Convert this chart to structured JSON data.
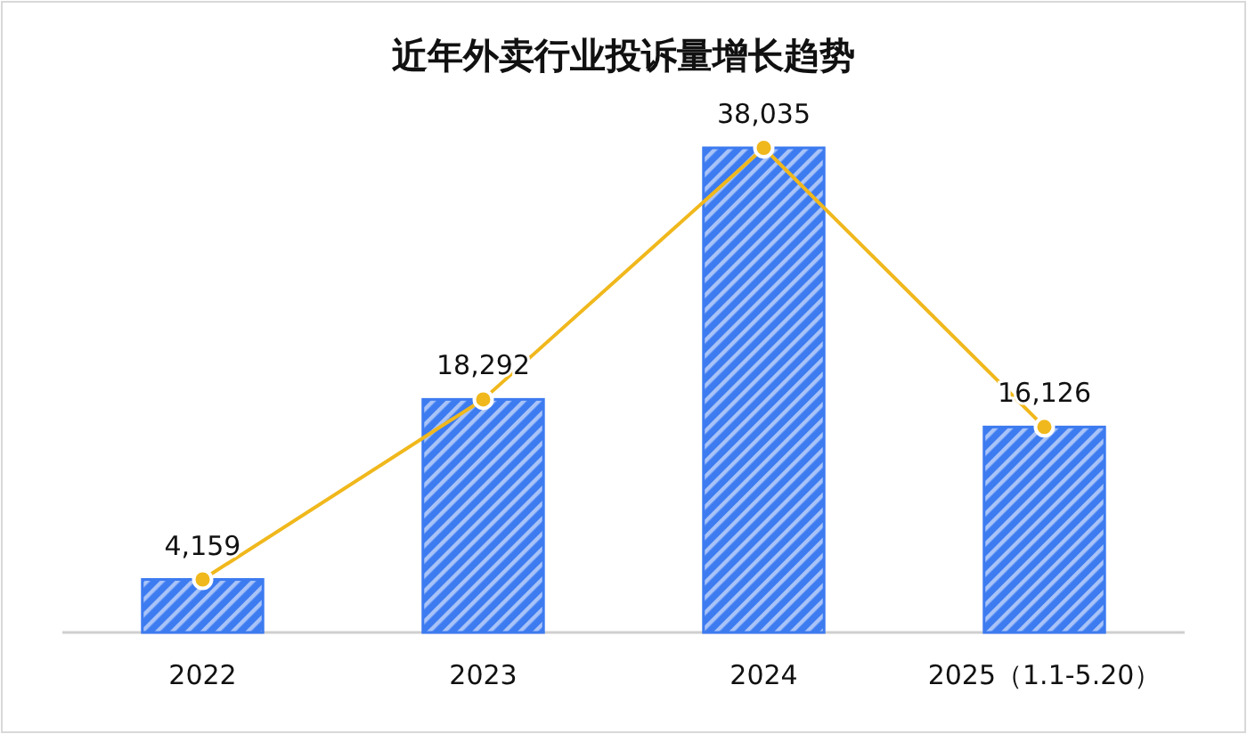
{
  "chart_data": {
    "type": "bar",
    "title": "近年外卖行业投诉量增长趋势",
    "categories": [
      "2022",
      "2023",
      "2024",
      "2025（1.1-5.20）"
    ],
    "series": [
      {
        "color": "#3d7bf0",
        "values": [
          4159,
          18292,
          38035,
          16126
        ]
      },
      {
        "type": "line",
        "color": "#f0b81c",
        "values": [
          4159,
          18292,
          38035,
          16126
        ],
        "value_labels": [
          "4,159",
          "18,292",
          "38,035",
          "16,126"
        ]
      }
    ],
    "marker": "circle"
  }
}
